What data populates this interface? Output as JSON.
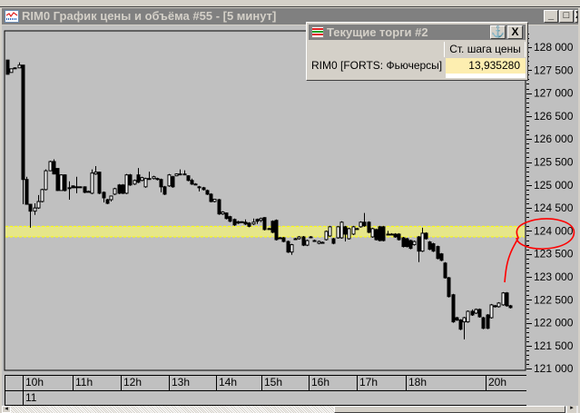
{
  "window": {
    "title": "RIM0 График цены и объёма #55 - [5 минут]",
    "minimize": "_",
    "maximize": "□",
    "close": "X"
  },
  "popup": {
    "title": "Текущие торги #2",
    "anchor": "⚓",
    "close": "X",
    "column_header": "Ст. шага цены",
    "row_label": "RIM0 [FORTS: Фьючерсы]",
    "row_value": "13,935280",
    "value_bg": "#fdeeb0"
  },
  "chart_data": {
    "type": "candlestick",
    "ylim": [
      121000,
      128300
    ],
    "y_ticks": [
      "128 000",
      "127 500",
      "127 000",
      "126 500",
      "126 000",
      "125 500",
      "125 000",
      "124 500",
      "124 000",
      "123 500",
      "123 000",
      "122 500",
      "122 000",
      "121 500",
      "121 000"
    ],
    "y_tick_values": [
      128000,
      127500,
      127000,
      126500,
      126000,
      125500,
      125000,
      124500,
      124000,
      123500,
      123000,
      122500,
      122000,
      121500,
      121000
    ],
    "x_ticks": [
      "10h",
      "11h",
      "12h",
      "13h",
      "14h",
      "15h",
      "16h",
      "17h",
      "18h",
      "20h"
    ],
    "date_label": "11",
    "highlight_band": {
      "from": 123870,
      "to": 124100,
      "color": "#e6e68a"
    },
    "annotation": {
      "type": "hand-drawn circle",
      "target": "124 000",
      "color": "#ff0000"
    },
    "candles_ochl": [
      [
        127720,
        127410,
        127720,
        127410
      ],
      [
        127450,
        127530,
        127530,
        127450
      ],
      [
        127550,
        127550,
        127560,
        127540
      ],
      [
        127550,
        127610,
        127670,
        127550
      ],
      [
        127610,
        125120,
        127610,
        124580
      ],
      [
        125120,
        124580,
        125180,
        124580
      ],
      [
        124580,
        124430,
        124580,
        124070
      ],
      [
        124430,
        124500,
        124600,
        124350
      ],
      [
        124500,
        124640,
        124780,
        124480
      ],
      [
        124640,
        124900,
        124920,
        124620
      ],
      [
        124900,
        125310,
        125340,
        124880
      ],
      [
        125310,
        125510,
        125530,
        125300
      ],
      [
        125510,
        125240,
        125560,
        125230
      ],
      [
        125360,
        124880,
        125360,
        124870
      ],
      [
        124880,
        125220,
        125230,
        124880
      ],
      [
        125220,
        124880,
        125230,
        124860
      ],
      [
        124940,
        124940,
        125080,
        124680
      ],
      [
        124980,
        124940,
        124990,
        124930
      ],
      [
        124960,
        124960,
        125180,
        124820
      ],
      [
        124960,
        124960,
        124970,
        124950
      ],
      [
        124960,
        124840,
        124970,
        124820
      ],
      [
        124860,
        124860,
        124880,
        124840
      ],
      [
        124820,
        125260,
        125340,
        124800
      ],
      [
        125240,
        125280,
        125410,
        125220
      ],
      [
        125280,
        124820,
        125290,
        124800
      ],
      [
        124840,
        124720,
        124860,
        124620
      ],
      [
        124680,
        124600,
        124700,
        124580
      ],
      [
        124680,
        124760,
        124770,
        124640
      ],
      [
        124800,
        124920,
        124940,
        124780
      ],
      [
        125000,
        124820,
        125020,
        124800
      ],
      [
        125000,
        124820,
        125020,
        124800
      ],
      [
        124820,
        125220,
        125240,
        124800
      ],
      [
        125220,
        125000,
        125240,
        124980
      ],
      [
        125020,
        125100,
        125120,
        125000
      ],
      [
        125220,
        125060,
        125370,
        125040
      ],
      [
        125100,
        125160,
        125180,
        125080
      ],
      [
        124960,
        125140,
        125160,
        124940
      ],
      [
        125140,
        125140,
        125290,
        125130
      ],
      [
        125140,
        125180,
        125200,
        125120
      ],
      [
        125120,
        125140,
        125160,
        125100
      ],
      [
        125120,
        124960,
        125140,
        124840
      ],
      [
        124960,
        124800,
        124980,
        124780
      ],
      [
        124980,
        125220,
        125240,
        124960
      ],
      [
        125180,
        124960,
        125200,
        124940
      ],
      [
        125200,
        125240,
        125250,
        125190
      ],
      [
        125240,
        125240,
        125340,
        125230
      ],
      [
        125240,
        125240,
        125320,
        125230
      ],
      [
        125200,
        125100,
        125210,
        125080
      ],
      [
        125100,
        125020,
        125140,
        125000
      ],
      [
        125020,
        125020,
        125040,
        125000
      ],
      [
        124960,
        124960,
        124980,
        124860
      ],
      [
        124940,
        124900,
        124960,
        124880
      ],
      [
        124880,
        124800,
        124900,
        124780
      ],
      [
        124800,
        124640,
        124820,
        124620
      ],
      [
        124640,
        124690,
        124700,
        124620
      ],
      [
        124680,
        124370,
        124700,
        124350
      ],
      [
        124370,
        124410,
        124430,
        124350
      ],
      [
        124390,
        124270,
        124400,
        124250
      ],
      [
        124310,
        124210,
        124330,
        124190
      ],
      [
        124250,
        124130,
        124270,
        124110
      ],
      [
        124200,
        124170,
        124220,
        124150
      ],
      [
        124200,
        124190,
        124210,
        124170
      ],
      [
        124190,
        124150,
        124250,
        124130
      ],
      [
        124170,
        124100,
        124190,
        124080
      ],
      [
        124150,
        124190,
        124270,
        124130
      ],
      [
        124250,
        124210,
        124270,
        124150
      ],
      [
        124230,
        124270,
        124290,
        124190
      ],
      [
        124290,
        124030,
        124300,
        124010
      ],
      [
        124050,
        124050,
        124070,
        124030
      ],
      [
        124210,
        123970,
        124230,
        123950
      ],
      [
        124230,
        123810,
        124250,
        123790
      ],
      [
        123850,
        123850,
        123870,
        123830
      ],
      [
        123850,
        123770,
        123870,
        123750
      ],
      [
        123770,
        123540,
        123790,
        123520
      ],
      [
        123540,
        123700,
        123720,
        123480
      ],
      [
        123830,
        123830,
        123850,
        123810
      ],
      [
        123830,
        123870,
        123890,
        123810
      ],
      [
        123870,
        123690,
        123890,
        123670
      ],
      [
        123690,
        123790,
        123810,
        123670
      ],
      [
        123870,
        123870,
        123890,
        123850
      ],
      [
        123790,
        123790,
        123810,
        123770
      ],
      [
        123730,
        123770,
        123790,
        123710
      ],
      [
        123750,
        123750,
        123770,
        123730
      ],
      [
        123810,
        123990,
        124010,
        123790
      ],
      [
        123890,
        124090,
        124110,
        123870
      ],
      [
        123830,
        123730,
        123850,
        123710
      ],
      [
        123850,
        124090,
        124110,
        123830
      ],
      [
        123850,
        124190,
        124210,
        123830
      ],
      [
        124090,
        123930,
        124110,
        123770
      ],
      [
        123830,
        124050,
        124070,
        123810
      ],
      [
        123930,
        124090,
        124110,
        123910
      ],
      [
        124050,
        124050,
        124070,
        124030
      ],
      [
        124090,
        124190,
        124210,
        124070
      ],
      [
        124190,
        124110,
        124390,
        124090
      ],
      [
        124190,
        123970,
        124210,
        123950
      ],
      [
        123870,
        124050,
        124070,
        123850
      ],
      [
        124030,
        123810,
        124050,
        123790
      ],
      [
        124090,
        123790,
        124110,
        123770
      ],
      [
        124090,
        123790,
        124110,
        123770
      ],
      [
        123930,
        123930,
        124000,
        123910
      ],
      [
        123930,
        123930,
        123950,
        123910
      ],
      [
        123930,
        123870,
        123950,
        123850
      ],
      [
        123930,
        123810,
        123950,
        123790
      ],
      [
        123850,
        123660,
        123870,
        123640
      ],
      [
        123830,
        123660,
        123850,
        123640
      ],
      [
        123790,
        123620,
        123810,
        123600
      ],
      [
        123700,
        123770,
        123790,
        123680
      ],
      [
        123870,
        123560,
        123890,
        123320
      ],
      [
        123560,
        123950,
        124070,
        123540
      ],
      [
        123950,
        123830,
        123970,
        123810
      ],
      [
        123760,
        123600,
        123780,
        123580
      ],
      [
        123720,
        123560,
        123740,
        123540
      ],
      [
        123660,
        123400,
        123680,
        123380
      ],
      [
        123500,
        123360,
        123520,
        123340
      ],
      [
        123300,
        122980,
        123320,
        122960
      ],
      [
        122980,
        122570,
        123000,
        122550
      ],
      [
        122610,
        122020,
        122630,
        122000
      ],
      [
        122110,
        122060,
        122130,
        122040
      ],
      [
        122060,
        121860,
        122080,
        121840
      ],
      [
        122020,
        122110,
        122130,
        121640
      ],
      [
        122020,
        122250,
        122270,
        122000
      ],
      [
        122250,
        122170,
        122290,
        122150
      ],
      [
        122210,
        122290,
        122310,
        122190
      ],
      [
        122290,
        122130,
        122310,
        122110
      ],
      [
        122110,
        121880,
        122130,
        121860
      ],
      [
        122170,
        121880,
        122190,
        121860
      ],
      [
        122110,
        122390,
        122410,
        122090
      ],
      [
        122350,
        122370,
        122390,
        122330
      ],
      [
        122350,
        122430,
        122450,
        122330
      ],
      [
        122390,
        122650,
        122670,
        122370
      ],
      [
        122650,
        122370,
        122670,
        122350
      ],
      [
        122370,
        122330,
        122390,
        122310
      ]
    ]
  }
}
